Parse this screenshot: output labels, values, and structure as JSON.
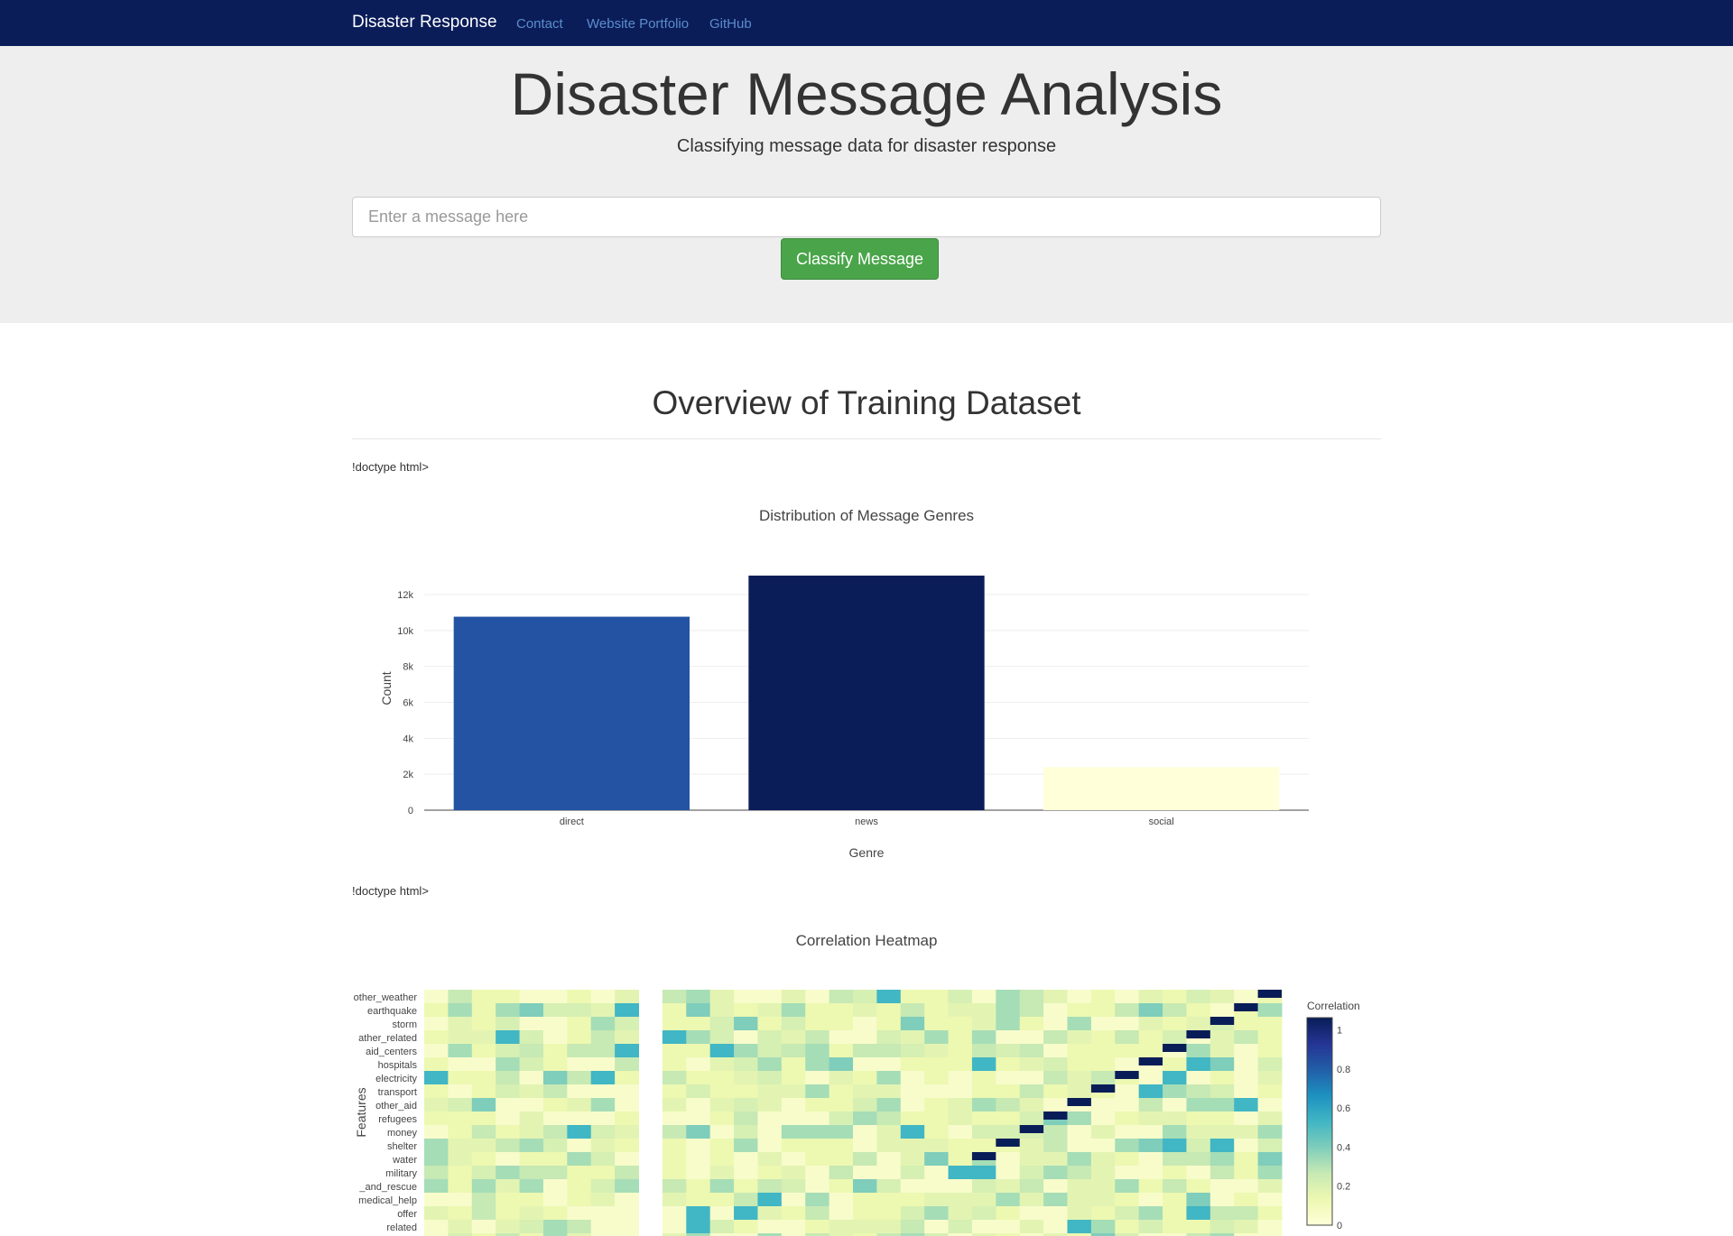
{
  "navbar": {
    "brand": "Disaster Response",
    "links": [
      "Contact",
      "Website Portfolio",
      "GitHub"
    ]
  },
  "hero": {
    "title": "Disaster Message Analysis",
    "subtitle": "Classifying message data for disaster response",
    "input_placeholder": "Enter a message here",
    "button_label": "Classify Message"
  },
  "overview": {
    "title": "Overview of Training Dataset",
    "stray_text_1": "!doctype html>",
    "stray_text_2": "!doctype html>"
  },
  "colors": {
    "navbar": "#0b1d59",
    "button": "#4aa54a",
    "bar_direct": "#2353a2",
    "bar_news": "#0b1d59",
    "bar_social": "#ffffd9"
  },
  "chart_data": [
    {
      "type": "bar",
      "title": "Distribution of Message Genres",
      "xlabel": "Genre",
      "ylabel": "Count",
      "categories": [
        "direct",
        "news",
        "social"
      ],
      "values": [
        10766,
        13054,
        2396
      ],
      "ylim": [
        0,
        13054
      ],
      "yticks": [
        "0",
        "2k",
        "4k",
        "6k",
        "8k",
        "10k",
        "12k"
      ],
      "grid": true
    },
    {
      "type": "heatmap",
      "title": "Correlation Heatmap",
      "ylabel": "Features",
      "colorbar_title": "Correlation",
      "colorbar_ticks": [
        "0",
        "0.2",
        "0.4",
        "0.6",
        "0.8",
        "1"
      ],
      "colorscale": "YlGnBu",
      "y_tick_labels": [
        "other_weather",
        "earthquake",
        "storm",
        "ather_related",
        "aid_centers",
        "hospitals",
        "electricity",
        "transport",
        "other_aid",
        "refugees",
        "money",
        "shelter",
        "water",
        "military",
        "_and_rescue",
        "medical_help",
        "offer",
        "related"
      ]
    }
  ]
}
